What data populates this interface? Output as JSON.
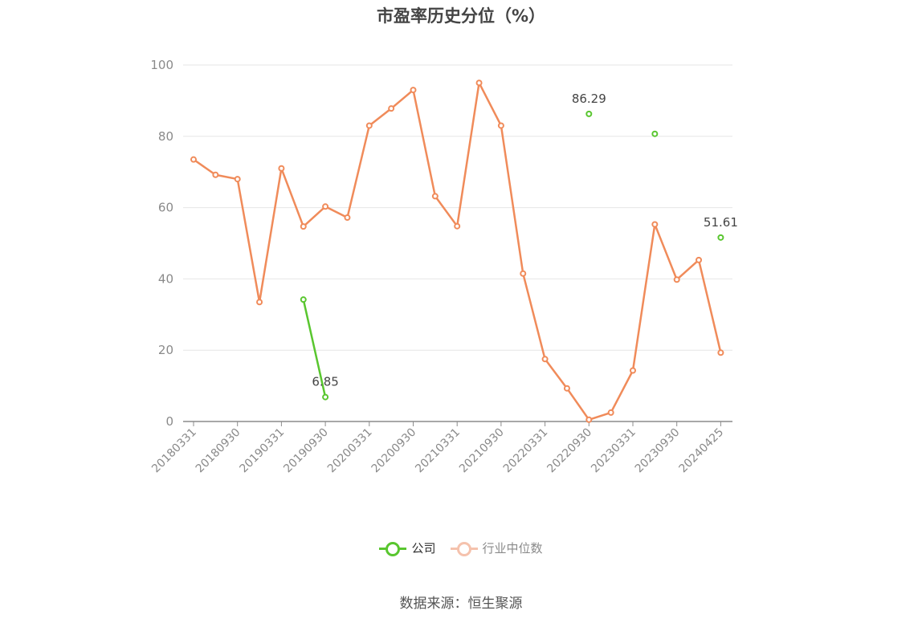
{
  "chart_data": {
    "type": "line",
    "title": "市盈率历史分位（%）",
    "ylim": [
      0,
      100
    ],
    "yticks": [
      0,
      20,
      40,
      60,
      80,
      100
    ],
    "xtick_labels": [
      "20180331",
      "20180930",
      "20190331",
      "20190930",
      "20200331",
      "20200930",
      "20210331",
      "20210930",
      "20220331",
      "20220930",
      "20230331",
      "20230930",
      "20240425"
    ],
    "grid": true,
    "legend_position": "bottom",
    "x": [
      "20180331",
      "20180630",
      "20180930",
      "20181231",
      "20190331",
      "20190630",
      "20190930",
      "20191231",
      "20200331",
      "20200630",
      "20200930",
      "20201231",
      "20210331",
      "20210630",
      "20210930",
      "20211231",
      "20220331",
      "20220630",
      "20220930",
      "20221231",
      "20230331",
      "20230630",
      "20230930",
      "20231231",
      "20240425"
    ],
    "series": [
      {
        "name": "公司",
        "color": "#59c62f",
        "values": [
          null,
          null,
          null,
          null,
          null,
          34.2,
          6.85,
          null,
          null,
          null,
          null,
          null,
          null,
          null,
          null,
          null,
          null,
          null,
          86.29,
          null,
          null,
          80.7,
          null,
          null,
          51.61
        ],
        "labels": [
          null,
          null,
          null,
          null,
          null,
          null,
          "6.85",
          null,
          null,
          null,
          null,
          null,
          null,
          null,
          null,
          null,
          null,
          null,
          "86.29",
          null,
          null,
          null,
          null,
          null,
          "51.61"
        ]
      },
      {
        "name": "行业中位数",
        "color": "#f08b5a",
        "values": [
          73.5,
          69.2,
          68.0,
          33.5,
          71.0,
          54.7,
          60.3,
          57.2,
          83.0,
          87.8,
          93.0,
          63.2,
          54.8,
          95.0,
          83.0,
          41.5,
          17.5,
          9.3,
          0.5,
          2.5,
          14.3,
          55.3,
          39.8,
          45.3,
          19.3
        ]
      }
    ]
  },
  "legend": [
    {
      "label": "公司"
    },
    {
      "label": "行业中位数"
    }
  ],
  "source": "数据来源：恒生聚源"
}
